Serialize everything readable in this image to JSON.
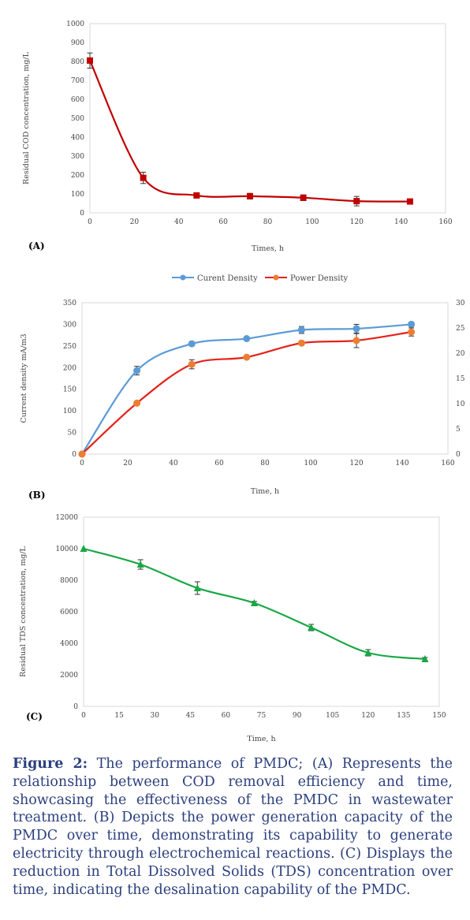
{
  "charts": [
    {
      "id": "A",
      "type": "line",
      "panel_label": "(A)",
      "xlabel": "Times, h",
      "ylabel": "Residual COD concentration, mg/L",
      "xlim": [
        0,
        160
      ],
      "ylim": [
        0,
        1000
      ],
      "xticks": [
        0,
        20,
        40,
        60,
        80,
        100,
        120,
        140,
        160
      ],
      "yticks": [
        0,
        100,
        200,
        300,
        400,
        500,
        600,
        700,
        800,
        900,
        1000
      ],
      "grid": false,
      "series": [
        {
          "name": "",
          "color": "#c00000",
          "marker": "square",
          "x": [
            0,
            24,
            48,
            72,
            96,
            120,
            144
          ],
          "y": [
            805,
            185,
            92,
            88,
            80,
            62,
            60
          ],
          "err": [
            40,
            30,
            8,
            15,
            15,
            25,
            8
          ]
        }
      ]
    },
    {
      "id": "B",
      "type": "line",
      "panel_label": "(B)",
      "xlabel": "Time, h",
      "ylabel": "Current density mA/m3",
      "xlim": [
        0,
        160
      ],
      "ylim": [
        0,
        350
      ],
      "y2lim": [
        0,
        30
      ],
      "xticks": [
        0,
        20,
        40,
        60,
        80,
        100,
        120,
        140,
        160
      ],
      "yticks": [
        0,
        50,
        100,
        150,
        200,
        250,
        300,
        350
      ],
      "y2ticks": [
        0,
        5,
        10,
        15,
        20,
        25,
        30
      ],
      "grid": false,
      "legend_position": "top",
      "series": [
        {
          "name": "Curent Density",
          "color": "#5b9bd5",
          "marker": "circle",
          "axis": "left",
          "x": [
            0,
            24,
            48,
            72,
            96,
            120,
            144
          ],
          "y": [
            0,
            193,
            255,
            267,
            287,
            290,
            300
          ],
          "err": [
            0,
            10,
            5,
            3,
            8,
            10,
            5
          ]
        },
        {
          "name": "Power Density",
          "color": "#ed7d31",
          "line_color": "#e3221b",
          "marker": "circle",
          "axis": "right",
          "x": [
            0,
            24,
            48,
            72,
            96,
            120,
            144
          ],
          "y": [
            0,
            10.1,
            17.8,
            19.2,
            22.0,
            22.5,
            24.2
          ],
          "err": [
            0,
            0.3,
            0.9,
            0.3,
            0.4,
            1.4,
            0.8
          ]
        }
      ]
    },
    {
      "id": "C",
      "type": "line",
      "panel_label": "(C)",
      "xlabel": "Time, h",
      "ylabel": "Residual TDS concentration, mg/L",
      "xlim": [
        0,
        150
      ],
      "ylim": [
        0,
        12000
      ],
      "xticks": [
        0,
        15,
        30,
        45,
        60,
        75,
        90,
        105,
        120,
        135,
        150
      ],
      "yticks": [
        0,
        2000,
        4000,
        6000,
        8000,
        10000,
        12000
      ],
      "grid": false,
      "series": [
        {
          "name": "",
          "color": "#17a844",
          "marker": "triangle",
          "x": [
            0,
            24,
            48,
            72,
            96,
            120,
            144
          ],
          "y": [
            10000,
            9000,
            7500,
            6550,
            5000,
            3400,
            3000
          ],
          "err": [
            0,
            300,
            400,
            100,
            200,
            200,
            100
          ]
        }
      ]
    }
  ],
  "caption": {
    "label": "Figure 2:",
    "text": " The performance of PMDC; (A) Represents the relationship between COD removal efficiency and time, showcasing the effectiveness of the PMDC in wastewater treatment. (B) Depicts the power generation capacity of the PMDC over time, demonstrating its capability to generate electricity through electrochemical reactions. (C) Displays the reduction in Total Dissolved Solids (TDS) concentration over time, indicating the desalination capability of the PMDC."
  }
}
